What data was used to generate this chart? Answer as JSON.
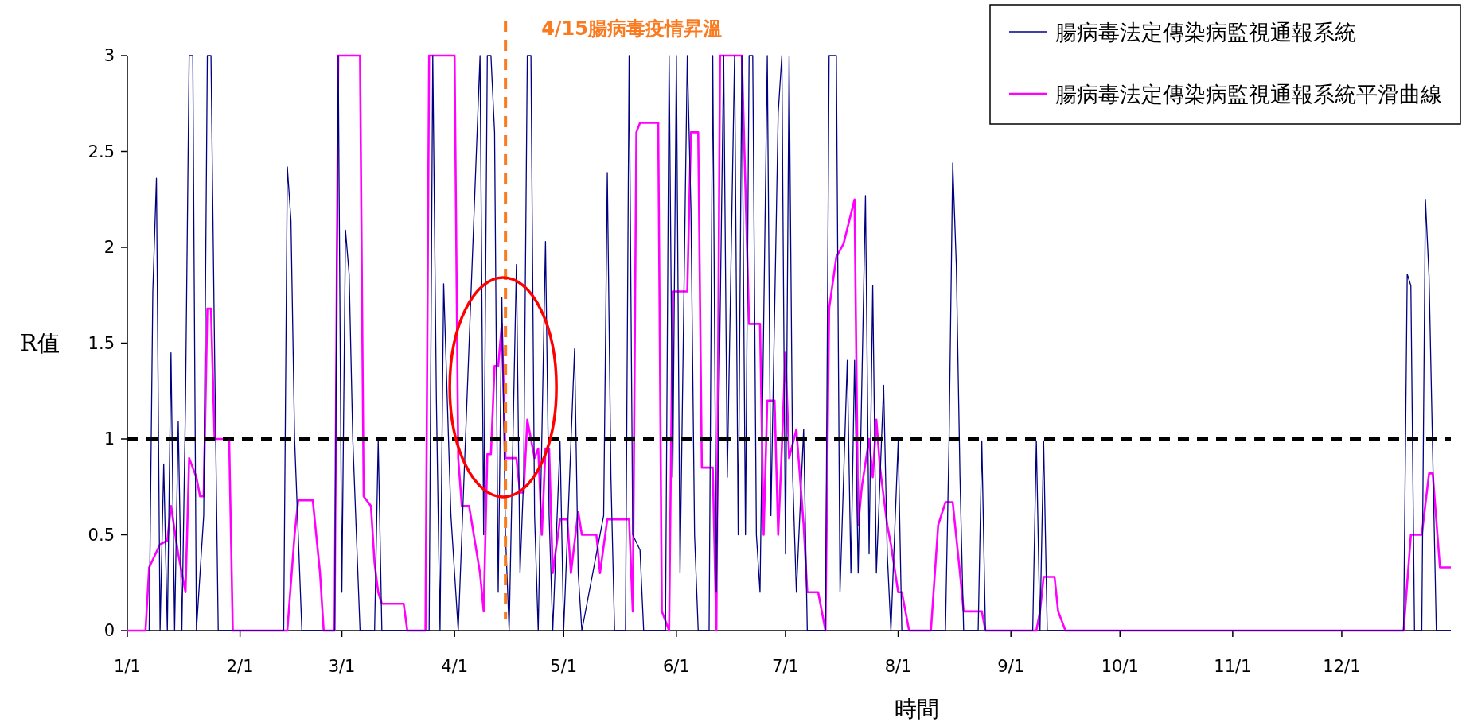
{
  "chart_data": {
    "type": "line",
    "xlabel": "時間",
    "ylabel": "R值",
    "xlim": [
      "--01-01",
      "--12-31"
    ],
    "xticks": [
      {
        "value": "--01-01",
        "label": "1/1"
      },
      {
        "value": "--02-01",
        "label": "2/1"
      },
      {
        "value": "--03-01",
        "label": "3/1"
      },
      {
        "value": "--04-01",
        "label": "4/1"
      },
      {
        "value": "--05-01",
        "label": "5/1"
      },
      {
        "value": "--06-01",
        "label": "6/1"
      },
      {
        "value": "--07-01",
        "label": "7/1"
      },
      {
        "value": "--08-01",
        "label": "8/1"
      },
      {
        "value": "--09-01",
        "label": "9/1"
      },
      {
        "value": "--10-01",
        "label": "10/1"
      },
      {
        "value": "--11-01",
        "label": "11/1"
      },
      {
        "value": "--12-01",
        "label": "12/1"
      }
    ],
    "ylim": [
      0,
      3
    ],
    "yticks": [
      0,
      0.5,
      1,
      1.5,
      2,
      2.5,
      3
    ],
    "legend": "top right",
    "ref_lines": [
      {
        "axis": "x",
        "value": "--04-15",
        "label": "4/15腸病毒疫情昇溫",
        "color": "#f97a1f",
        "line_style": "dashed"
      },
      {
        "axis": "y",
        "value": 1,
        "color": "#000000",
        "line_style": "dashed"
      }
    ],
    "series": [
      {
        "name": "腸病毒法定傳染病監視通報系統",
        "color": "#000080",
        "x": [
          "--01-07",
          "--01-08",
          "--01-09",
          "--01-10",
          "--01-11",
          "--01-12",
          "--01-13",
          "--01-14",
          "--01-15",
          "--01-16",
          "--01-17",
          "--01-18",
          "--01-19",
          "--01-20",
          "--01-22",
          "--01-23",
          "--01-24",
          "--01-25",
          "--01-26",
          "--02-13",
          "--02-14",
          "--02-15",
          "--02-16",
          "--02-17",
          "--02-18",
          "--02-27",
          "--02-28",
          "--03-01",
          "--03-02",
          "--03-03",
          "--03-04",
          "--03-05",
          "--03-06",
          "--03-10",
          "--03-11",
          "--03-12",
          "--03-25",
          "--03-26",
          "--03-27",
          "--03-28",
          "--03-29",
          "--03-30",
          "--03-31",
          "--04-01",
          "--04-02",
          "--04-08",
          "--04-09",
          "--04-10",
          "--04-11",
          "--04-12",
          "--04-13",
          "--04-14",
          "--04-15",
          "--04-16",
          "--04-18",
          "--04-19",
          "--04-20",
          "--04-21",
          "--04-22",
          "--04-23",
          "--04-24",
          "--04-26",
          "--04-27",
          "--04-28",
          "--04-30",
          "--05-01",
          "--05-04",
          "--05-05",
          "--05-06",
          "--05-12",
          "--05-13",
          "--05-14",
          "--05-15",
          "--05-18",
          "--05-19",
          "--05-20",
          "--05-22",
          "--05-23",
          "--05-29",
          "--05-30",
          "--05-31",
          "--06-01",
          "--06-02",
          "--06-04",
          "--06-05",
          "--06-06",
          "--06-07",
          "--06-10",
          "--06-11",
          "--06-12",
          "--06-14",
          "--06-15",
          "--06-17",
          "--06-18",
          "--06-19",
          "--06-20",
          "--06-21",
          "--06-22",
          "--06-23",
          "--06-24",
          "--06-26",
          "--06-27",
          "--06-29",
          "--06-30",
          "--07-01",
          "--07-02",
          "--07-03",
          "--07-04",
          "--07-06",
          "--07-07",
          "--07-12",
          "--07-13",
          "--07-14",
          "--07-15",
          "--07-16",
          "--07-18",
          "--07-19",
          "--07-20",
          "--07-21",
          "--07-23",
          "--07-24",
          "--07-25",
          "--07-26",
          "--07-28",
          "--07-29",
          "--07-30",
          "--08-01",
          "--08-02",
          "--08-14",
          "--08-15",
          "--08-16",
          "--08-17",
          "--08-18",
          "--08-19",
          "--08-23",
          "--08-24",
          "--08-25",
          "--09-07",
          "--09-08",
          "--09-09",
          "--09-10",
          "--09-11",
          "--12-18",
          "--12-19",
          "--12-20",
          "--12-21",
          "--12-23",
          "--12-24",
          "--12-25",
          "--12-27",
          "--12-31"
        ],
        "values": [
          0,
          1.77,
          2.36,
          0,
          0.87,
          0,
          1.45,
          0,
          1.09,
          0,
          1.2,
          3,
          3,
          0,
          0.6,
          3,
          3,
          1.44,
          0,
          0,
          2.42,
          2.14,
          1.0,
          0.5,
          0,
          0,
          3,
          0.2,
          2.09,
          1.86,
          1.0,
          0.5,
          0,
          0,
          0.99,
          0,
          0,
          3,
          1.2,
          0,
          1.81,
          1.2,
          0.6,
          0.3,
          0,
          3,
          0.5,
          3,
          3,
          2.6,
          0.2,
          1.74,
          0.5,
          0,
          1.91,
          0.3,
          0.8,
          3,
          3,
          0.6,
          0,
          2.03,
          0.6,
          0,
          0.99,
          0,
          1.47,
          0.3,
          0,
          0.6,
          2.39,
          0.8,
          0,
          0,
          3,
          0.5,
          0.42,
          0,
          0,
          3,
          0.8,
          3,
          0.3,
          3,
          2.2,
          0.5,
          0,
          0,
          3,
          0.2,
          3,
          0.8,
          3,
          0.5,
          3,
          0.5,
          3,
          3,
          0.5,
          0.2,
          3,
          0.6,
          2.7,
          3,
          0.4,
          3,
          0.8,
          0.2,
          1.05,
          0,
          0,
          3,
          3,
          3,
          0.2,
          1.41,
          0.3,
          1.41,
          0.3,
          2.27,
          0.4,
          1.8,
          0.3,
          1.28,
          0.4,
          0,
          0.99,
          0,
          0,
          1.0,
          2.44,
          1.9,
          0.8,
          0,
          0,
          0.99,
          0,
          0,
          0.99,
          0,
          0.99,
          0,
          0,
          1.86,
          1.8,
          0,
          0,
          2.25,
          1.85,
          0,
          0
        ]
      },
      {
        "name": "腸病毒法定傳染病監視通報系統平滑曲線",
        "color": "#ff00ff",
        "x": [
          "--01-01",
          "--01-06",
          "--01-07",
          "--01-10",
          "--01-12",
          "--01-13",
          "--01-15",
          "--01-17",
          "--01-18",
          "--01-20",
          "--01-21",
          "--01-22",
          "--01-23",
          "--01-24",
          "--01-25",
          "--01-29",
          "--01-30",
          "--02-14",
          "--02-16",
          "--02-17",
          "--02-21",
          "--02-23",
          "--02-24",
          "--02-27",
          "--02-28",
          "--03-06",
          "--03-07",
          "--03-09",
          "--03-10",
          "--03-11",
          "--03-12",
          "--03-18",
          "--03-19",
          "--03-24",
          "--03-25",
          "--04-01",
          "--04-02",
          "--04-03",
          "--04-05",
          "--04-08",
          "--04-09",
          "--04-10",
          "--04-11",
          "--04-12",
          "--04-13",
          "--04-14",
          "--04-15",
          "--04-18",
          "--04-19",
          "--04-20",
          "--04-21",
          "--04-23",
          "--04-24",
          "--04-25",
          "--04-26",
          "--04-27",
          "--04-28",
          "--04-30",
          "--05-02",
          "--05-03",
          "--05-05",
          "--05-06",
          "--05-10",
          "--05-11",
          "--05-13",
          "--05-19",
          "--05-20",
          "--05-21",
          "--05-22",
          "--05-27",
          "--05-28",
          "--05-30",
          "--05-31",
          "--06-04",
          "--06-05",
          "--06-07",
          "--06-08",
          "--06-11",
          "--06-12",
          "--06-13",
          "--06-19",
          "--06-21",
          "--06-24",
          "--06-25",
          "--06-26",
          "--06-28",
          "--06-29",
          "--06-30",
          "--07-01",
          "--07-02",
          "--07-04",
          "--07-06",
          "--07-07",
          "--07-10",
          "--07-12",
          "--07-13",
          "--07-15",
          "--07-17",
          "--07-20",
          "--07-21",
          "--07-22",
          "--07-24",
          "--07-25",
          "--07-26",
          "--07-27",
          "--07-29",
          "--07-30",
          "--08-01",
          "--08-02",
          "--08-04",
          "--08-10",
          "--08-12",
          "--08-14",
          "--08-16",
          "--08-18",
          "--08-19",
          "--08-24",
          "--08-25",
          "--09-08",
          "--09-09",
          "--09-10",
          "--09-13",
          "--09-14",
          "--09-16",
          "--12-18",
          "--12-20",
          "--12-23",
          "--12-25",
          "--12-26",
          "--12-28",
          "--12-31"
        ],
        "values": [
          0,
          0,
          0.33,
          0.45,
          0.47,
          0.65,
          0.4,
          0.2,
          0.9,
          0.8,
          0.7,
          0.7,
          1.68,
          1.68,
          1.0,
          1.0,
          0,
          0,
          0.5,
          0.68,
          0.68,
          0.3,
          0,
          0,
          3,
          3,
          0.7,
          0.65,
          0.35,
          0.2,
          0.14,
          0.14,
          0,
          0,
          3,
          3,
          0.9,
          0.65,
          0.65,
          0.3,
          0.1,
          0.92,
          0.92,
          1.38,
          1.38,
          1.6,
          0.9,
          0.9,
          0.72,
          0.72,
          1.1,
          0.9,
          0.95,
          0.5,
          0.95,
          0.95,
          0.3,
          0.58,
          0.58,
          0.3,
          0.62,
          0.5,
          0.5,
          0.3,
          0.58,
          0.58,
          0.1,
          2.6,
          2.65,
          2.65,
          0.1,
          0,
          1.77,
          1.77,
          2.6,
          2.6,
          0.85,
          0.85,
          0,
          3,
          3,
          1.6,
          1.6,
          0.5,
          1.2,
          1.2,
          0.5,
          0.95,
          1.45,
          0.9,
          1.05,
          0.55,
          0.2,
          0.2,
          0,
          1.68,
          1.95,
          2.02,
          2.25,
          0.55,
          0.75,
          1.0,
          0.8,
          1.1,
          0.85,
          0.55,
          0.45,
          0.2,
          0.2,
          0,
          0,
          0.55,
          0.67,
          0.67,
          0.3,
          0.1,
          0.1,
          0,
          0,
          0.1,
          0.28,
          0.28,
          0.1,
          0,
          0,
          0.5,
          0.5,
          0.82,
          0.82,
          0.33,
          0.33
        ]
      }
    ]
  }
}
